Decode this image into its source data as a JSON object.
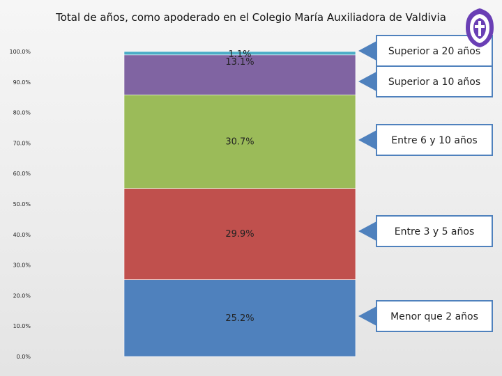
{
  "chart_data": {
    "type": "bar",
    "stacked": true,
    "title": "Total de años, como apoderado en el Colegio María Auxiliadora de Valdivia",
    "yticks": [
      "0.0%",
      "10.0%",
      "20.0%",
      "30.0%",
      "40.0%",
      "50.0%",
      "60.0%",
      "70.0%",
      "80.0%",
      "90.0%",
      "100.0%"
    ],
    "ylim": [
      0,
      100
    ],
    "series": [
      {
        "name": "Menor que 2 años",
        "value": 25.2,
        "label": "25.2%",
        "color": "#4f81bd"
      },
      {
        "name": "Entre 3 y 5 años",
        "value": 29.9,
        "label": "29.9%",
        "color": "#c0504d"
      },
      {
        "name": "Entre 6 y 10 años",
        "value": 30.7,
        "label": "30.7%",
        "color": "#9bbb59"
      },
      {
        "name": "Superior a 10 años",
        "value": 13.1,
        "label": "13.1%",
        "color": "#8064a2"
      },
      {
        "name": "Superior a 20 años",
        "value": 1.1,
        "label": "1.1%",
        "color": "#4bacc6"
      }
    ],
    "callout_color": "#4f81bd"
  },
  "logo": {
    "icon": "school-crest-icon",
    "color": "#6a3fb5"
  }
}
